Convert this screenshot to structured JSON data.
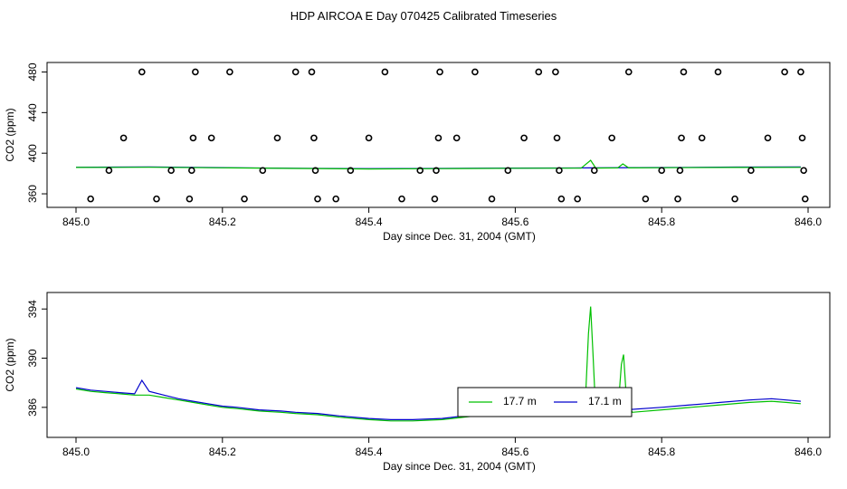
{
  "title": "HDP AIRCOA E  Day 070425  Calibrated Timeseries",
  "colors": {
    "green": "#00c000",
    "blue": "#0000cc",
    "axis": "#000000"
  },
  "chart_data": [
    {
      "type": "scatter",
      "xlabel": "Day since Dec. 31, 2004 (GMT)",
      "ylabel": "CO2 (ppm)",
      "xlim": [
        845.0,
        846.0
      ],
      "ylim": [
        352,
        484
      ],
      "xticks": [
        845.0,
        845.2,
        845.4,
        845.6,
        845.8,
        846.0
      ],
      "xtick_labels": [
        "845.0",
        "845.2",
        "845.4",
        "845.6",
        "845.8",
        "846.0"
      ],
      "yticks": [
        360,
        400,
        440,
        480
      ],
      "ytick_labels": [
        "360",
        "400",
        "440",
        "480"
      ],
      "series": [
        {
          "color": "blue",
          "kind": "line",
          "points": [
            [
              845.0,
              386.2
            ],
            [
              845.1,
              386.5
            ],
            [
              845.2,
              385.8
            ],
            [
              845.3,
              385.2
            ],
            [
              845.4,
              384.8
            ],
            [
              845.5,
              385.0
            ],
            [
              845.6,
              385.4
            ],
            [
              845.7,
              385.5
            ],
            [
              845.8,
              385.9
            ],
            [
              845.9,
              386.3
            ],
            [
              845.99,
              386.4
            ]
          ]
        },
        {
          "color": "green",
          "kind": "line",
          "points": [
            [
              845.0,
              386.0
            ],
            [
              845.1,
              386.2
            ],
            [
              845.2,
              385.6
            ],
            [
              845.3,
              385.0
            ],
            [
              845.4,
              384.5
            ],
            [
              845.5,
              384.8
            ],
            [
              845.6,
              385.2
            ],
            [
              845.69,
              385.3
            ],
            [
              845.703,
              393.0
            ],
            [
              845.71,
              385.4
            ],
            [
              845.74,
              385.5
            ],
            [
              845.747,
              389.5
            ],
            [
              845.755,
              385.5
            ],
            [
              845.8,
              385.7
            ],
            [
              845.9,
              386.0
            ],
            [
              845.99,
              386.1
            ]
          ]
        },
        {
          "color": "black",
          "kind": "points",
          "points": [
            [
              845.02,
              355
            ],
            [
              845.045,
              383
            ],
            [
              845.065,
              415
            ],
            [
              845.09,
              480
            ],
            [
              845.11,
              355
            ],
            [
              845.13,
              383
            ],
            [
              845.155,
              355
            ],
            [
              845.158,
              383
            ],
            [
              845.16,
              415
            ],
            [
              845.163,
              480
            ],
            [
              845.185,
              415
            ],
            [
              845.21,
              480
            ],
            [
              845.23,
              355
            ],
            [
              845.255,
              383
            ],
            [
              845.275,
              415
            ],
            [
              845.3,
              480
            ],
            [
              845.322,
              480
            ],
            [
              845.325,
              415
            ],
            [
              845.327,
              383
            ],
            [
              845.33,
              355
            ],
            [
              845.355,
              355
            ],
            [
              845.375,
              383
            ],
            [
              845.4,
              415
            ],
            [
              845.422,
              480
            ],
            [
              845.445,
              355
            ],
            [
              845.47,
              383
            ],
            [
              845.49,
              355
            ],
            [
              845.492,
              383
            ],
            [
              845.495,
              415
            ],
            [
              845.497,
              480
            ],
            [
              845.52,
              415
            ],
            [
              845.545,
              480
            ],
            [
              845.568,
              355
            ],
            [
              845.59,
              383
            ],
            [
              845.612,
              415
            ],
            [
              845.632,
              480
            ],
            [
              845.655,
              480
            ],
            [
              845.657,
              415
            ],
            [
              845.66,
              383
            ],
            [
              845.663,
              355
            ],
            [
              845.685,
              355
            ],
            [
              845.708,
              383
            ],
            [
              845.732,
              415
            ],
            [
              845.755,
              480
            ],
            [
              845.778,
              355
            ],
            [
              845.8,
              383
            ],
            [
              845.822,
              355
            ],
            [
              845.825,
              383
            ],
            [
              845.827,
              415
            ],
            [
              845.83,
              480
            ],
            [
              845.855,
              415
            ],
            [
              845.877,
              480
            ],
            [
              845.9,
              355
            ],
            [
              845.922,
              383
            ],
            [
              845.945,
              415
            ],
            [
              845.968,
              480
            ],
            [
              845.99,
              480
            ],
            [
              845.992,
              415
            ],
            [
              845.994,
              383
            ],
            [
              845.996,
              355
            ]
          ]
        }
      ]
    },
    {
      "type": "line",
      "xlabel": "Day since Dec. 31, 2004 (GMT)",
      "ylabel": "CO2 (ppm)",
      "xlim": [
        845.0,
        846.0
      ],
      "ylim": [
        384.0,
        394.9
      ],
      "xticks": [
        845.0,
        845.2,
        845.4,
        845.6,
        845.8,
        846.0
      ],
      "xtick_labels": [
        "845.0",
        "845.2",
        "845.4",
        "845.6",
        "845.8",
        "846.0"
      ],
      "yticks": [
        386,
        390,
        394
      ],
      "ytick_labels": [
        "386",
        "390",
        "394"
      ],
      "legend": {
        "placement": "center-right",
        "entries": [
          "17.7 m",
          "17.1 m"
        ]
      },
      "series": [
        {
          "name": "17.7 m",
          "color": "green",
          "points": [
            [
              845.0,
              387.5
            ],
            [
              845.02,
              387.3
            ],
            [
              845.04,
              387.2
            ],
            [
              845.06,
              387.1
            ],
            [
              845.08,
              387.0
            ],
            [
              845.1,
              387.0
            ],
            [
              845.12,
              386.8
            ],
            [
              845.14,
              386.6
            ],
            [
              845.16,
              386.4
            ],
            [
              845.18,
              386.2
            ],
            [
              845.2,
              386.0
            ],
            [
              845.22,
              385.9
            ],
            [
              845.25,
              385.7
            ],
            [
              845.28,
              385.6
            ],
            [
              845.3,
              385.5
            ],
            [
              845.33,
              385.4
            ],
            [
              845.36,
              385.2
            ],
            [
              845.4,
              385.0
            ],
            [
              845.43,
              384.9
            ],
            [
              845.46,
              384.9
            ],
            [
              845.5,
              385.0
            ],
            [
              845.53,
              385.2
            ],
            [
              845.56,
              385.4
            ],
            [
              845.6,
              385.5
            ],
            [
              845.64,
              385.5
            ],
            [
              845.68,
              385.5
            ],
            [
              845.695,
              385.6
            ],
            [
              845.7,
              392.0
            ],
            [
              845.703,
              394.2
            ],
            [
              845.706,
              390.5
            ],
            [
              845.71,
              385.5
            ],
            [
              845.74,
              385.6
            ],
            [
              845.745,
              389.5
            ],
            [
              845.748,
              390.3
            ],
            [
              845.752,
              386.5
            ],
            [
              845.76,
              385.6
            ],
            [
              845.8,
              385.8
            ],
            [
              845.84,
              386.0
            ],
            [
              845.88,
              386.2
            ],
            [
              845.92,
              386.4
            ],
            [
              845.95,
              386.5
            ],
            [
              845.97,
              386.4
            ],
            [
              845.99,
              386.3
            ]
          ]
        },
        {
          "name": "17.1 m",
          "color": "blue",
          "points": [
            [
              845.0,
              387.6
            ],
            [
              845.02,
              387.4
            ],
            [
              845.04,
              387.3
            ],
            [
              845.06,
              387.2
            ],
            [
              845.08,
              387.1
            ],
            [
              845.09,
              388.2
            ],
            [
              845.1,
              387.3
            ],
            [
              845.12,
              387.0
            ],
            [
              845.14,
              386.7
            ],
            [
              845.16,
              386.5
            ],
            [
              845.18,
              386.3
            ],
            [
              845.2,
              386.1
            ],
            [
              845.22,
              386.0
            ],
            [
              845.25,
              385.8
            ],
            [
              845.28,
              385.7
            ],
            [
              845.3,
              385.6
            ],
            [
              845.33,
              385.5
            ],
            [
              845.36,
              385.3
            ],
            [
              845.4,
              385.1
            ],
            [
              845.43,
              385.0
            ],
            [
              845.46,
              385.0
            ],
            [
              845.5,
              385.1
            ],
            [
              845.53,
              385.3
            ],
            [
              845.56,
              385.5
            ],
            [
              845.6,
              385.6
            ],
            [
              845.64,
              385.6
            ],
            [
              845.68,
              385.7
            ],
            [
              845.69,
              386.0
            ],
            [
              845.7,
              385.6
            ],
            [
              845.74,
              385.7
            ],
            [
              845.745,
              387.0
            ],
            [
              845.75,
              385.8
            ],
            [
              845.8,
              386.0
            ],
            [
              845.84,
              386.2
            ],
            [
              845.86,
              386.3
            ],
            [
              845.88,
              386.4
            ],
            [
              845.92,
              386.6
            ],
            [
              845.95,
              386.7
            ],
            [
              845.97,
              386.6
            ],
            [
              845.99,
              386.5
            ]
          ]
        }
      ]
    }
  ]
}
